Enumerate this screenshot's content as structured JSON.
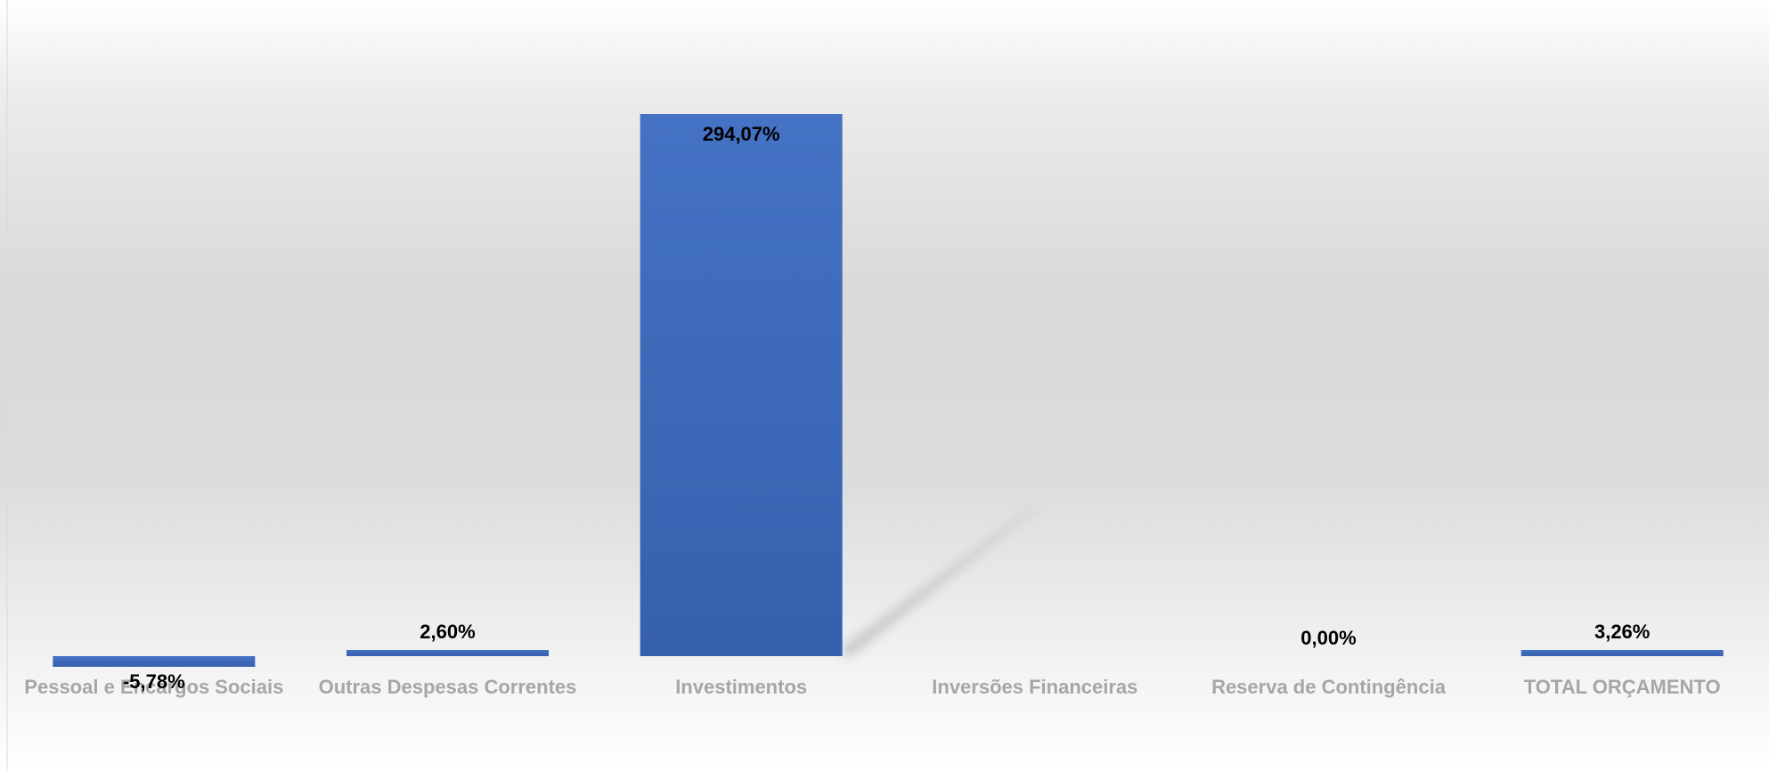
{
  "chart_data": {
    "type": "bar",
    "categories": [
      "Pessoal e Encargos Sociais",
      "Outras Despesas Correntes",
      "Investimentos",
      "Inversões Financeiras",
      "Reserva de Contingência",
      "TOTAL ORÇAMENTO"
    ],
    "values": [
      -5.78,
      2.6,
      294.07,
      null,
      0.0,
      3.26
    ],
    "data_labels": [
      "-5,78%",
      "2,60%",
      "294,07%",
      "",
      "0,00%",
      "3,26%"
    ],
    "title": "",
    "xlabel": "",
    "ylabel": "",
    "ylim": [
      -10,
      300
    ],
    "grid": false,
    "legend": "none",
    "colors": {
      "bar_top": "#4472c4",
      "bar_bottom": "#3560ad",
      "category_text": "#a6a6a6",
      "label_text": "#000000",
      "background_mid": "#d9d9d9",
      "background_edge": "#ffffff"
    }
  }
}
